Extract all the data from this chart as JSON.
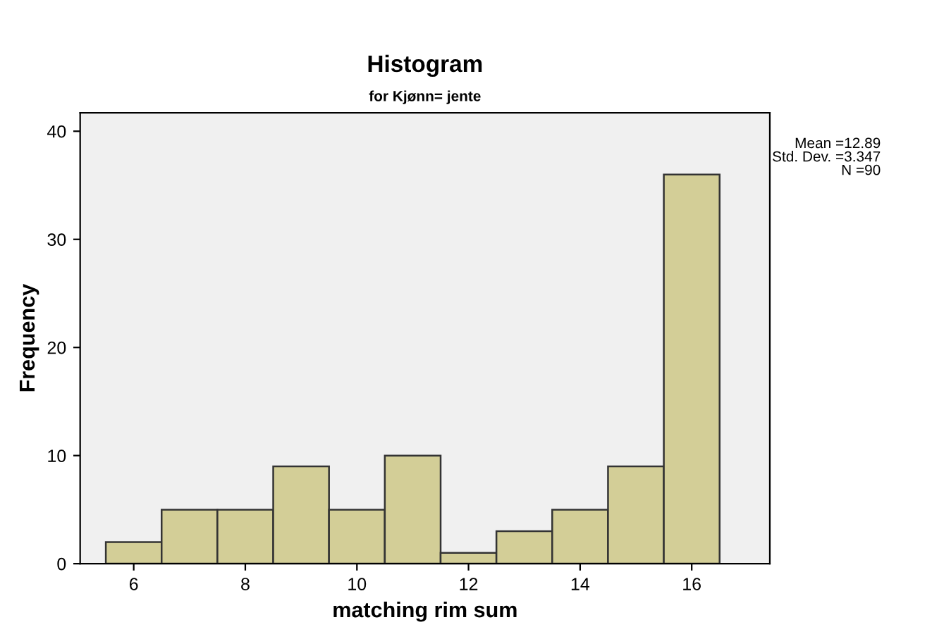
{
  "chart_data": {
    "type": "histogram",
    "title": "Histogram",
    "subtitle": "for Kjønn= jente",
    "xlabel": "matching rim sum",
    "ylabel": "Frequency",
    "bins": [
      5.5,
      6.5,
      7.5,
      8.5,
      9.5,
      10.5,
      11.5,
      12.5,
      13.5,
      14.5,
      15.5,
      16.5
    ],
    "values": [
      2,
      5,
      5,
      9,
      5,
      10,
      1,
      3,
      5,
      9,
      36
    ],
    "color": "#d3ce97",
    "xlim": [
      5.04,
      17.4
    ],
    "ylim": [
      0,
      41.7
    ],
    "xticks": [
      6,
      8,
      10,
      12,
      14,
      16
    ],
    "yticks": [
      0,
      10,
      20,
      30,
      40
    ],
    "grid": false,
    "annotations": [
      "Mean =12.89",
      "Std. Dev. =3.347",
      "N =90"
    ]
  }
}
